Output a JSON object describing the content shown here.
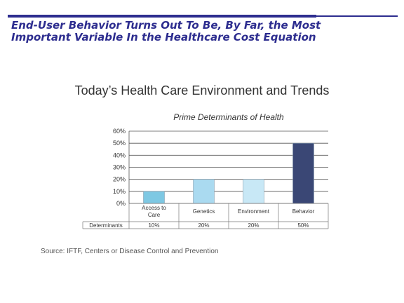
{
  "slide": {
    "title": "End-User Behavior Turns Out To Be, By Far, the Most Important Variable In the Healthcare Cost Equation",
    "heading": "Today’s Health Care Environment and Trends",
    "source": "Source: IFTF, Centers or Disease Control and Prevention"
  },
  "colors": {
    "title": "#2d2d8f",
    "access": "#7ec8e3",
    "genetics": "#aadaf0",
    "environment": "#c8e8f6",
    "behavior": "#3a4775"
  },
  "chart_data": {
    "type": "bar",
    "title": "Prime Determinants of Health",
    "categories": [
      [
        "Access to",
        "Care"
      ],
      [
        "Genetics"
      ],
      [
        "Environment"
      ],
      [
        "Behavior"
      ]
    ],
    "values": [
      10,
      20,
      20,
      50
    ],
    "ylim": [
      0,
      60
    ],
    "yticks": [
      "0%",
      "10%",
      "20%",
      "30%",
      "40%",
      "50%",
      "60%"
    ],
    "grid": true,
    "table": {
      "row_label": "Determinants",
      "cells": [
        "10%",
        "20%",
        "20%",
        "50%"
      ]
    }
  }
}
